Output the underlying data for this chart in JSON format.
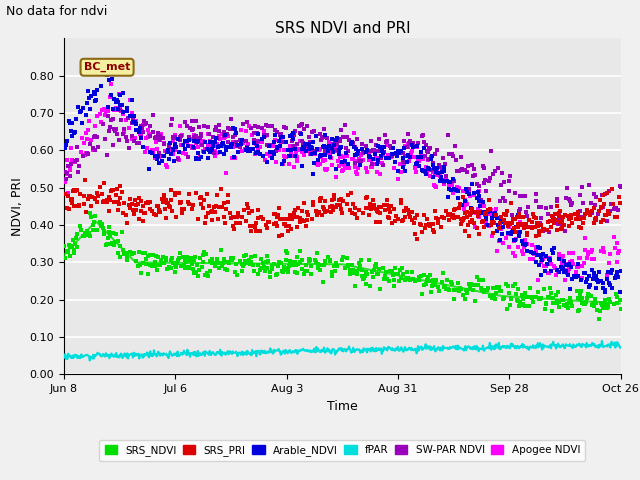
{
  "title": "SRS NDVI and PRI",
  "no_data_text": "No data for ndvi",
  "ylabel": "NDVI, PRI",
  "xlabel": "Time",
  "bc_met_label": "BC_met",
  "xlim_days": [
    0,
    140
  ],
  "ylim": [
    0.0,
    0.9
  ],
  "yticks": [
    0.0,
    0.1,
    0.2,
    0.3,
    0.4,
    0.5,
    0.6,
    0.7,
    0.8
  ],
  "xtick_labels": [
    "Jun 8",
    "Jul 6",
    "Aug 3",
    "Aug 31",
    "Sep 28",
    "Oct 26"
  ],
  "xtick_positions": [
    0,
    28,
    56,
    84,
    112,
    140
  ],
  "colors": {
    "SRS_NDVI": "#00dd00",
    "SRS_PRI": "#dd0000",
    "Arable_NDVI": "#0000dd",
    "fPAR": "#00dddd",
    "SW_PAR_NDVI": "#9900bb",
    "Apogee_NDVI": "#ff00ff"
  },
  "legend": [
    "SRS_NDVI",
    "SRS_PRI",
    "Arable_NDVI",
    "fPAR",
    "SW-PAR NDVI",
    "Apogee NDVI"
  ],
  "legend_colors": [
    "#00dd00",
    "#dd0000",
    "#0000dd",
    "#00dddd",
    "#9900bb",
    "#ff00ff"
  ],
  "background_color": "#f0f0f0",
  "plot_bg_color": "#e8e8e8",
  "grid_color": "#ffffff"
}
